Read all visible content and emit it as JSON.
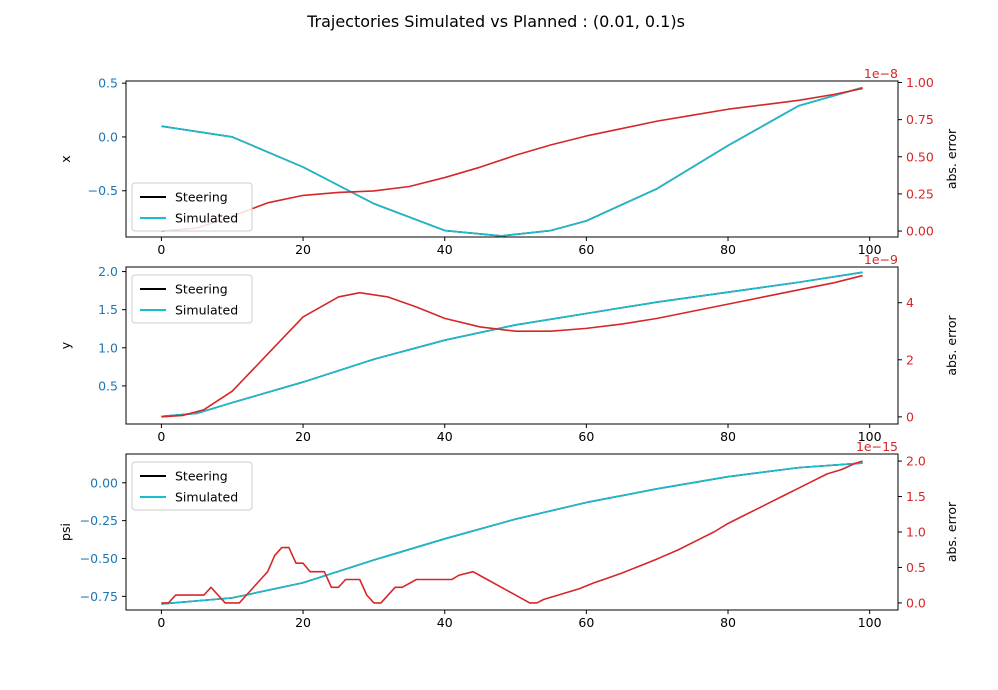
{
  "figure": {
    "title": "Trajectories Simulated vs Planned : (0.01, 0.1)s"
  },
  "colors": {
    "left_axis": "#1f77b4",
    "right_axis": "#d62728",
    "steering": "#000000",
    "simulated": "#17becf",
    "error": "#d62728",
    "axes": "#000000"
  },
  "chart_data": [
    {
      "type": "line",
      "ylabel": "x",
      "ylabel_right": "abs. error",
      "right_offset_text": "1e−8",
      "xlim": [
        -5,
        104
      ],
      "ylim": [
        -0.93,
        0.52
      ],
      "ylim_right": [
        -0.04,
        1.01
      ],
      "xticks": [
        0,
        20,
        40,
        60,
        80,
        100
      ],
      "xtick_labels": [
        "0",
        "20",
        "40",
        "60",
        "80",
        "100"
      ],
      "yticks": [
        0.5,
        0.0,
        -0.5
      ],
      "ytick_labels": [
        "0.5",
        "0.0",
        "−0.5"
      ],
      "yticks_right": [
        1.0,
        0.75,
        0.5,
        0.25,
        0.0
      ],
      "ytick_labels_right": [
        "1.00",
        "0.75",
        "0.50",
        "0.25",
        "0.00"
      ],
      "legend": {
        "position": "lower-left",
        "entries": [
          "Steering",
          "Simulated"
        ]
      },
      "series": [
        {
          "name": "Steering",
          "axis": "left",
          "x": [
            0,
            10,
            20,
            30,
            40,
            48,
            55,
            60,
            70,
            80,
            90,
            99
          ],
          "values": [
            0.1,
            0.0,
            -0.28,
            -0.62,
            -0.87,
            -0.92,
            -0.87,
            -0.78,
            -0.48,
            -0.08,
            0.29,
            0.46
          ]
        },
        {
          "name": "Simulated",
          "axis": "left",
          "x": [
            0,
            10,
            20,
            30,
            40,
            48,
            55,
            60,
            70,
            80,
            90,
            99
          ],
          "values": [
            0.1,
            0.0,
            -0.28,
            -0.62,
            -0.87,
            -0.92,
            -0.87,
            -0.78,
            -0.48,
            -0.08,
            0.29,
            0.46
          ]
        },
        {
          "name": "abs. error",
          "axis": "right",
          "x": [
            0,
            5,
            10,
            15,
            20,
            25,
            30,
            35,
            40,
            45,
            50,
            55,
            60,
            65,
            70,
            75,
            80,
            85,
            90,
            95,
            99
          ],
          "values": [
            0.0,
            0.02,
            0.1,
            0.19,
            0.24,
            0.26,
            0.27,
            0.3,
            0.36,
            0.43,
            0.51,
            0.58,
            0.64,
            0.69,
            0.74,
            0.78,
            0.82,
            0.85,
            0.88,
            0.92,
            0.96
          ]
        }
      ]
    },
    {
      "type": "line",
      "ylabel": "y",
      "ylabel_right": "abs. error",
      "right_offset_text": "1e−9",
      "xlim": [
        -5,
        104
      ],
      "ylim": [
        0.0,
        2.06
      ],
      "ylim_right": [
        -0.25,
        5.25
      ],
      "xticks": [
        0,
        20,
        40,
        60,
        80,
        100
      ],
      "xtick_labels": [
        "0",
        "20",
        "40",
        "60",
        "80",
        "100"
      ],
      "yticks": [
        2.0,
        1.5,
        1.0,
        0.5
      ],
      "ytick_labels": [
        "2.0",
        "1.5",
        "1.0",
        "0.5"
      ],
      "yticks_right": [
        4,
        2,
        0
      ],
      "ytick_labels_right": [
        "4",
        "2",
        "0"
      ],
      "legend": {
        "position": "top-left",
        "entries": [
          "Steering",
          "Simulated"
        ]
      },
      "series": [
        {
          "name": "Steering",
          "axis": "left",
          "x": [
            0,
            5,
            10,
            20,
            30,
            40,
            50,
            60,
            70,
            80,
            90,
            99
          ],
          "values": [
            0.1,
            0.14,
            0.28,
            0.55,
            0.85,
            1.1,
            1.3,
            1.45,
            1.6,
            1.73,
            1.86,
            1.99
          ]
        },
        {
          "name": "Simulated",
          "axis": "left",
          "x": [
            0,
            5,
            10,
            20,
            30,
            40,
            50,
            60,
            70,
            80,
            90,
            99
          ],
          "values": [
            0.1,
            0.14,
            0.28,
            0.55,
            0.85,
            1.1,
            1.3,
            1.45,
            1.6,
            1.73,
            1.86,
            1.99
          ]
        },
        {
          "name": "abs. error",
          "axis": "right",
          "x": [
            0,
            3,
            6,
            10,
            15,
            20,
            25,
            28,
            32,
            36,
            40,
            45,
            50,
            55,
            60,
            65,
            70,
            75,
            80,
            85,
            90,
            95,
            99
          ],
          "values": [
            0.0,
            0.05,
            0.25,
            0.9,
            2.2,
            3.5,
            4.2,
            4.35,
            4.2,
            3.85,
            3.45,
            3.15,
            3.0,
            3.0,
            3.1,
            3.25,
            3.45,
            3.7,
            3.95,
            4.2,
            4.45,
            4.7,
            4.95
          ]
        }
      ]
    },
    {
      "type": "line",
      "ylabel": "psi",
      "ylabel_right": "abs. error",
      "right_offset_text": "1e−15",
      "xlim": [
        -5,
        104
      ],
      "ylim": [
        -0.84,
        0.19
      ],
      "ylim_right": [
        -0.1,
        2.1
      ],
      "xticks": [
        0,
        20,
        40,
        60,
        80,
        100
      ],
      "xtick_labels": [
        "0",
        "20",
        "40",
        "60",
        "80",
        "100"
      ],
      "yticks": [
        0.0,
        -0.25,
        -0.5,
        -0.75
      ],
      "ytick_labels": [
        "0.00",
        "−0.25",
        "−0.50",
        "−0.75"
      ],
      "yticks_right": [
        2.0,
        1.5,
        1.0,
        0.5,
        0.0
      ],
      "ytick_labels_right": [
        "2.0",
        "1.5",
        "1.0",
        "0.5",
        "0.0"
      ],
      "legend": {
        "position": "top-left",
        "entries": [
          "Steering",
          "Simulated"
        ]
      },
      "series": [
        {
          "name": "Steering",
          "axis": "left",
          "x": [
            0,
            10,
            20,
            30,
            40,
            50,
            60,
            70,
            80,
            90,
            99
          ],
          "values": [
            -0.8,
            -0.76,
            -0.66,
            -0.51,
            -0.37,
            -0.24,
            -0.13,
            -0.04,
            0.04,
            0.1,
            0.13
          ]
        },
        {
          "name": "Simulated",
          "axis": "left",
          "x": [
            0,
            10,
            20,
            30,
            40,
            50,
            60,
            70,
            80,
            90,
            99
          ],
          "values": [
            -0.8,
            -0.76,
            -0.66,
            -0.51,
            -0.37,
            -0.24,
            -0.13,
            -0.04,
            0.04,
            0.1,
            0.13
          ]
        },
        {
          "name": "abs. error",
          "axis": "right",
          "x": [
            0,
            1,
            2,
            6,
            7,
            8,
            9,
            11,
            12,
            14,
            15,
            16,
            17,
            18,
            19,
            20,
            21,
            23,
            24,
            25,
            26,
            28,
            29,
            30,
            31,
            33,
            34,
            36,
            38,
            41,
            42,
            44,
            46,
            48,
            50,
            52,
            53,
            54,
            55,
            57,
            59,
            61,
            63,
            65,
            67,
            70,
            73,
            76,
            78,
            80,
            82,
            84,
            86,
            88,
            90,
            92,
            94,
            96,
            98,
            99
          ],
          "values": [
            0.0,
            0.0,
            0.11,
            0.11,
            0.22,
            0.11,
            0.0,
            0.0,
            0.11,
            0.33,
            0.44,
            0.67,
            0.78,
            0.78,
            0.56,
            0.56,
            0.44,
            0.44,
            0.22,
            0.22,
            0.33,
            0.33,
            0.11,
            0.0,
            0.0,
            0.22,
            0.22,
            0.33,
            0.33,
            0.33,
            0.39,
            0.44,
            0.33,
            0.22,
            0.11,
            0.0,
            0.0,
            0.05,
            0.08,
            0.14,
            0.2,
            0.28,
            0.35,
            0.42,
            0.5,
            0.62,
            0.75,
            0.9,
            1.0,
            1.12,
            1.22,
            1.32,
            1.42,
            1.52,
            1.62,
            1.72,
            1.82,
            1.88,
            1.97,
            2.0
          ]
        }
      ]
    }
  ]
}
